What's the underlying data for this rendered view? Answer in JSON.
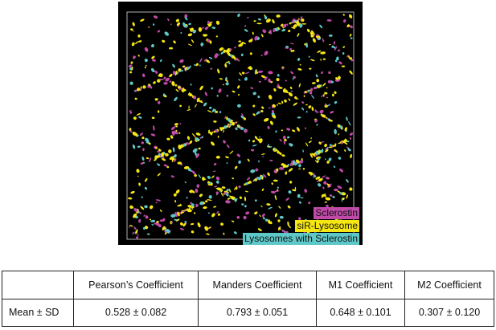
{
  "figure": {
    "legend": [
      "Sclerostin",
      "siR-Lysosome",
      "Lysosomes with Sclerostin"
    ]
  },
  "table": {
    "columns": [
      "Pearson’s Coefficient",
      "Manders Coefficient",
      "M1 Coefficient",
      "M2 Coefficient"
    ],
    "rows": [
      {
        "label": "Mean ± SD",
        "cells": [
          "0.528 ± 0.082",
          "0.793 ± 0.051",
          "0.648 ± 0.101",
          "0.307 ± 0.120"
        ]
      }
    ]
  }
}
